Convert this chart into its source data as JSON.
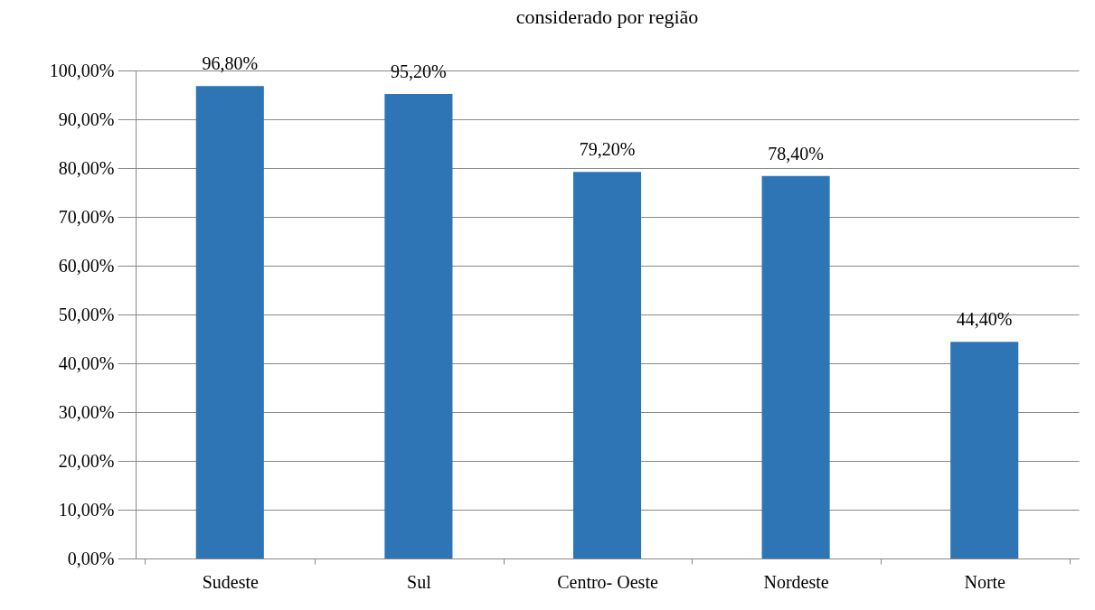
{
  "chart_data": {
    "type": "bar",
    "title": "considerado por região",
    "categories": [
      "Sudeste",
      "Sul",
      "Centro- Oeste",
      "Nordeste",
      "Norte"
    ],
    "values": [
      96.8,
      95.2,
      79.2,
      78.4,
      44.4
    ],
    "color": "#2e75b6",
    "value_labels": [
      "96,80%",
      "95,20%",
      "79,20%",
      "78,40%",
      "44,40%"
    ],
    "ylim": [
      0,
      100
    ],
    "yticks": [
      {
        "value": 0,
        "label": "0,00%"
      },
      {
        "value": 10,
        "label": "10,00%"
      },
      {
        "value": 20,
        "label": "20,00%"
      },
      {
        "value": 30,
        "label": "30,00%"
      },
      {
        "value": 40,
        "label": "40,00%"
      },
      {
        "value": 50,
        "label": "50,00%"
      },
      {
        "value": 60,
        "label": "60,00%"
      },
      {
        "value": 70,
        "label": "70,00%"
      },
      {
        "value": 80,
        "label": "80,00%"
      },
      {
        "value": 90,
        "label": "90,00%"
      },
      {
        "value": 100,
        "label": "100,00%"
      }
    ],
    "grid": "y"
  }
}
